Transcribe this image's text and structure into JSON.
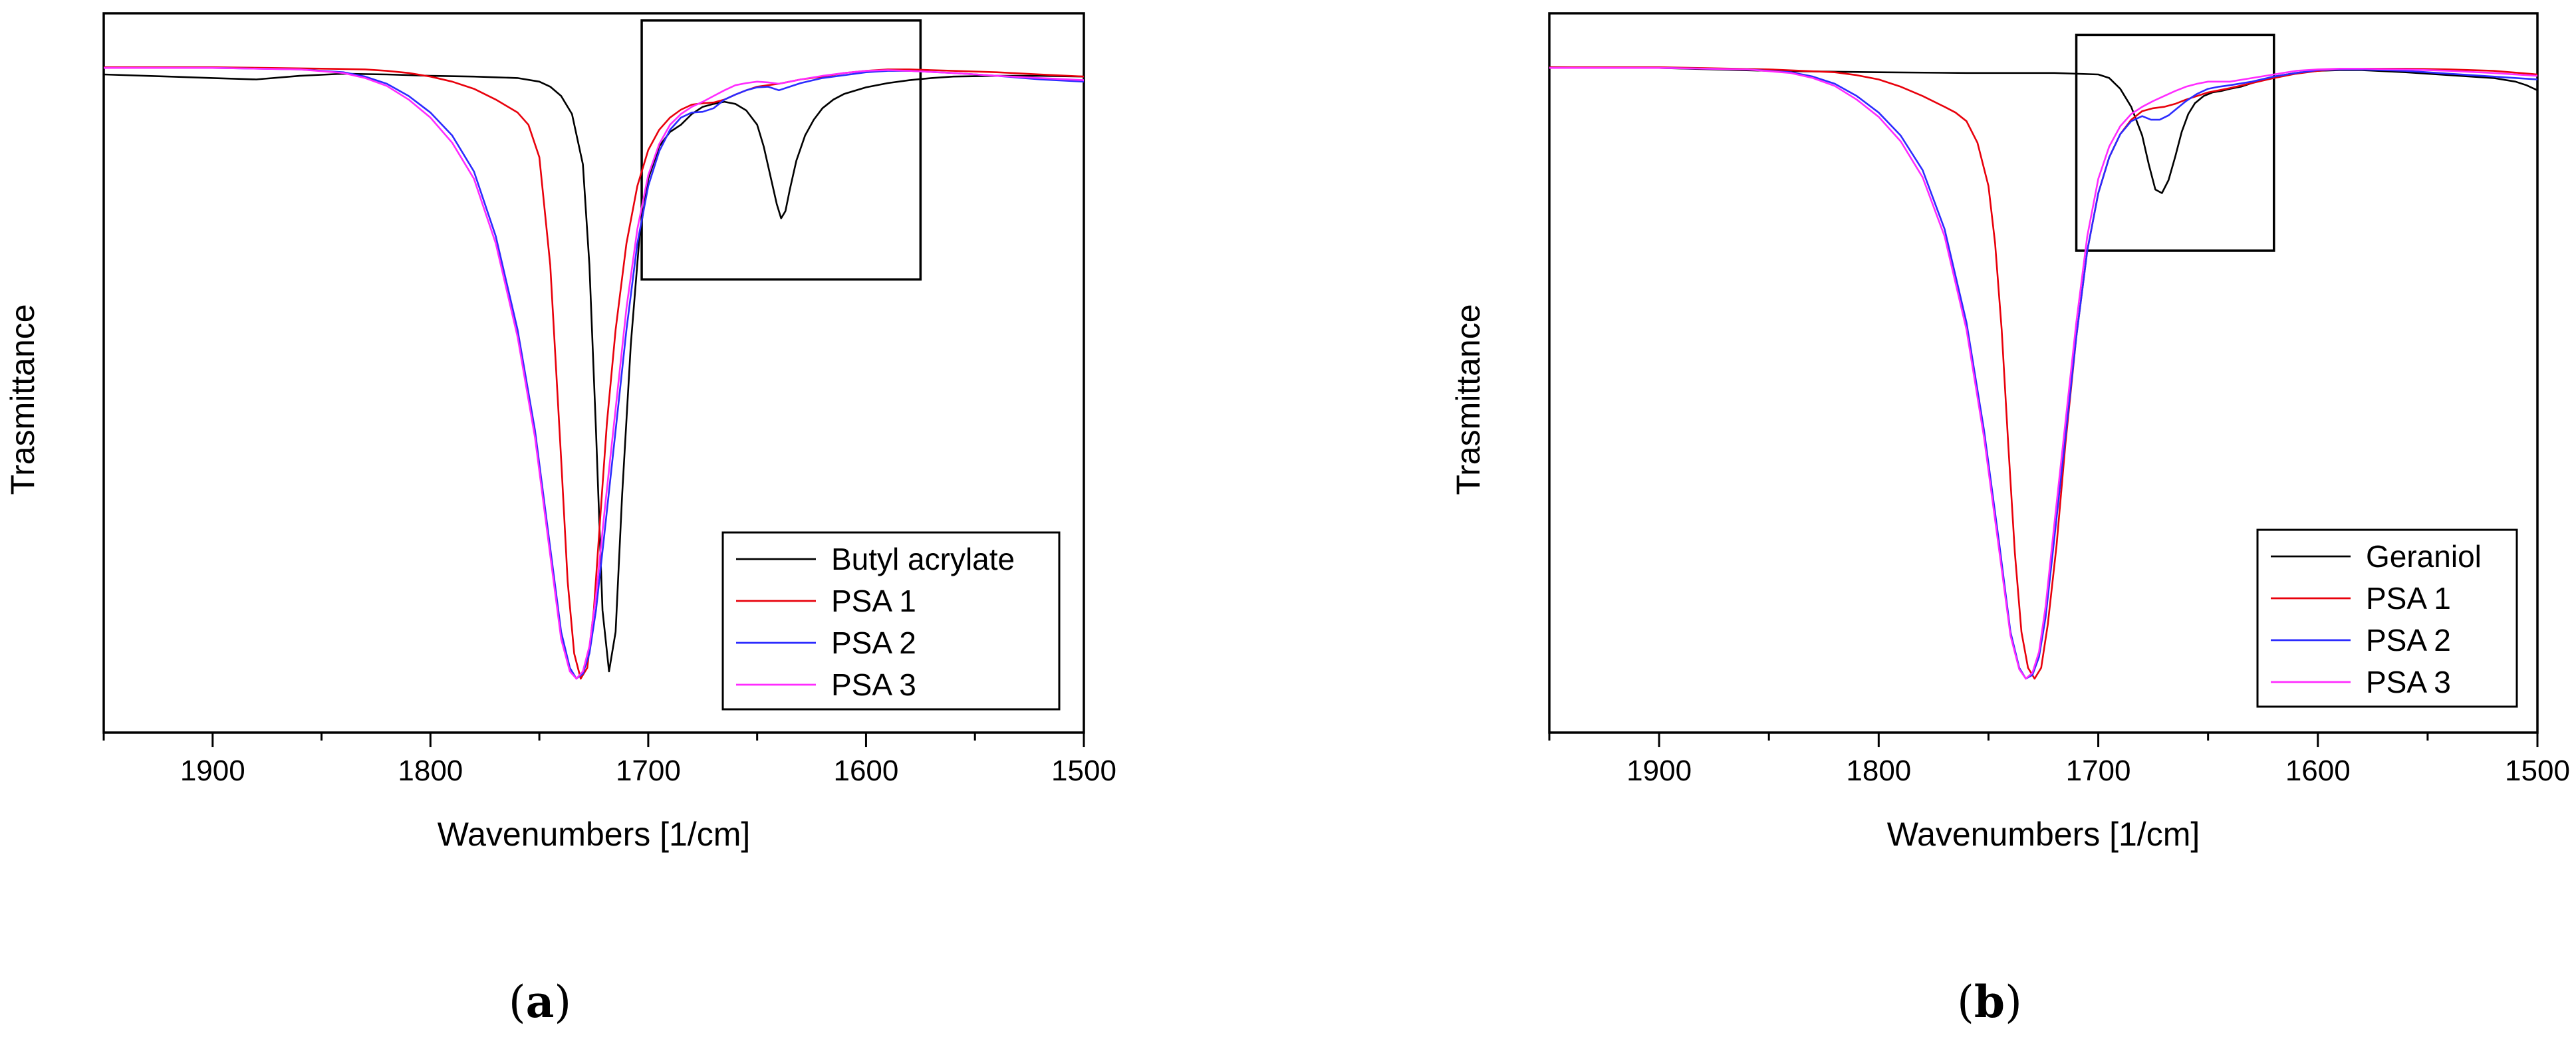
{
  "chart_data": [
    {
      "type": "line",
      "panel_label": "a",
      "xlabel": "Wavenumbers [1/cm]",
      "ylabel": "Trasmittance",
      "xlim": [
        1950,
        1500
      ],
      "x_reversed": true,
      "ylim": [
        0.0,
        1.0
      ],
      "y_ticks_shown": false,
      "x_ticks": [
        1900,
        1800,
        1700,
        1600,
        1500
      ],
      "x_tick_labels": [
        "1900",
        "1800",
        "1700",
        "1600",
        "1500"
      ],
      "grid": false,
      "legend": {
        "position": "bottom-right",
        "entries": [
          "Butyl acrylate",
          "PSA 1",
          "PSA 2",
          "PSA 3"
        ]
      },
      "inset_box_x": [
        1703,
        1575
      ],
      "inset_box_y": [
        0.63,
        0.99
      ],
      "series": [
        {
          "name": "Butyl acrylate",
          "color": "#000000",
          "x": [
            1950,
            1920,
            1900,
            1880,
            1860,
            1840,
            1820,
            1800,
            1780,
            1770,
            1760,
            1750,
            1745,
            1740,
            1735,
            1730,
            1727,
            1724,
            1721,
            1718,
            1715,
            1712,
            1708,
            1704,
            1700,
            1695,
            1690,
            1685,
            1680,
            1675,
            1670,
            1665,
            1660,
            1655,
            1650,
            1647,
            1644,
            1641,
            1639,
            1637,
            1635,
            1632,
            1628,
            1624,
            1620,
            1615,
            1610,
            1600,
            1590,
            1580,
            1570,
            1560,
            1540,
            1520,
            1500
          ],
          "y": [
            0.915,
            0.912,
            0.91,
            0.908,
            0.913,
            0.916,
            0.915,
            0.913,
            0.912,
            0.911,
            0.91,
            0.905,
            0.898,
            0.885,
            0.86,
            0.79,
            0.65,
            0.42,
            0.17,
            0.085,
            0.14,
            0.33,
            0.54,
            0.69,
            0.77,
            0.815,
            0.835,
            0.845,
            0.86,
            0.87,
            0.874,
            0.877,
            0.874,
            0.865,
            0.845,
            0.815,
            0.775,
            0.735,
            0.715,
            0.725,
            0.755,
            0.795,
            0.83,
            0.852,
            0.868,
            0.88,
            0.888,
            0.897,
            0.903,
            0.907,
            0.91,
            0.912,
            0.913,
            0.913,
            0.912
          ]
        },
        {
          "name": "PSA 1",
          "color": "#e8000b",
          "x": [
            1950,
            1900,
            1850,
            1830,
            1820,
            1810,
            1800,
            1790,
            1780,
            1770,
            1760,
            1755,
            1750,
            1745,
            1740,
            1737,
            1734,
            1731,
            1728,
            1725,
            1722,
            1719,
            1715,
            1710,
            1705,
            1700,
            1695,
            1690,
            1685,
            1680,
            1675,
            1670,
            1665,
            1660,
            1655,
            1650,
            1645,
            1640,
            1635,
            1630,
            1620,
            1610,
            1600,
            1590,
            1580,
            1560,
            1540,
            1520,
            1500
          ],
          "y": [
            0.925,
            0.925,
            0.923,
            0.922,
            0.92,
            0.917,
            0.912,
            0.905,
            0.895,
            0.88,
            0.862,
            0.845,
            0.8,
            0.65,
            0.38,
            0.21,
            0.11,
            0.075,
            0.09,
            0.17,
            0.3,
            0.43,
            0.56,
            0.68,
            0.76,
            0.81,
            0.838,
            0.855,
            0.866,
            0.873,
            0.875,
            0.876,
            0.88,
            0.887,
            0.893,
            0.898,
            0.9,
            0.902,
            0.905,
            0.908,
            0.912,
            0.917,
            0.92,
            0.922,
            0.922,
            0.92,
            0.918,
            0.915,
            0.912
          ]
        },
        {
          "name": "PSA 2",
          "color": "#2b2bff",
          "x": [
            1950,
            1900,
            1860,
            1840,
            1830,
            1820,
            1810,
            1800,
            1790,
            1780,
            1770,
            1760,
            1752,
            1746,
            1740,
            1736,
            1733,
            1730,
            1727,
            1724,
            1720,
            1715,
            1710,
            1705,
            1700,
            1695,
            1690,
            1685,
            1680,
            1675,
            1670,
            1665,
            1660,
            1655,
            1650,
            1645,
            1640,
            1635,
            1630,
            1620,
            1610,
            1600,
            1590,
            1580,
            1560,
            1540,
            1520,
            1500
          ],
          "y": [
            0.924,
            0.924,
            0.922,
            0.918,
            0.912,
            0.902,
            0.885,
            0.862,
            0.83,
            0.78,
            0.69,
            0.56,
            0.42,
            0.28,
            0.14,
            0.09,
            0.075,
            0.082,
            0.11,
            0.17,
            0.28,
            0.42,
            0.56,
            0.68,
            0.76,
            0.808,
            0.838,
            0.855,
            0.862,
            0.863,
            0.868,
            0.88,
            0.887,
            0.893,
            0.897,
            0.898,
            0.893,
            0.898,
            0.903,
            0.91,
            0.914,
            0.918,
            0.92,
            0.92,
            0.917,
            0.913,
            0.908,
            0.905
          ]
        },
        {
          "name": "PSA 3",
          "color": "#ff2bff",
          "x": [
            1950,
            1900,
            1860,
            1840,
            1830,
            1820,
            1810,
            1800,
            1790,
            1780,
            1770,
            1760,
            1752,
            1746,
            1740,
            1736,
            1733,
            1730,
            1727,
            1724,
            1720,
            1715,
            1710,
            1705,
            1700,
            1695,
            1690,
            1685,
            1680,
            1675,
            1670,
            1665,
            1660,
            1655,
            1650,
            1645,
            1640,
            1635,
            1630,
            1620,
            1610,
            1600,
            1590,
            1580,
            1560,
            1540,
            1520,
            1500
          ],
          "y": [
            0.924,
            0.924,
            0.922,
            0.917,
            0.91,
            0.899,
            0.88,
            0.855,
            0.82,
            0.77,
            0.68,
            0.55,
            0.41,
            0.27,
            0.13,
            0.085,
            0.075,
            0.085,
            0.12,
            0.19,
            0.31,
            0.45,
            0.59,
            0.7,
            0.775,
            0.818,
            0.845,
            0.86,
            0.87,
            0.877,
            0.885,
            0.893,
            0.9,
            0.903,
            0.905,
            0.904,
            0.902,
            0.905,
            0.908,
            0.913,
            0.917,
            0.92,
            0.921,
            0.92,
            0.917,
            0.913,
            0.91,
            0.907
          ]
        }
      ]
    },
    {
      "type": "line",
      "panel_label": "b",
      "xlabel": "Wavenumbers [1/cm]",
      "ylabel": "Trasmittance",
      "xlim": [
        1950,
        1500
      ],
      "x_reversed": true,
      "ylim": [
        0.0,
        1.0
      ],
      "y_ticks_shown": false,
      "x_ticks": [
        1900,
        1800,
        1700,
        1600,
        1500
      ],
      "x_tick_labels": [
        "1900",
        "1800",
        "1700",
        "1600",
        "1500"
      ],
      "grid": false,
      "legend": {
        "position": "bottom-right",
        "entries": [
          "Geraniol",
          "PSA 1",
          "PSA 2",
          "PSA 3"
        ]
      },
      "inset_box_x": [
        1710,
        1620
      ],
      "inset_box_y": [
        0.67,
        0.97
      ],
      "series": [
        {
          "name": "Geraniol",
          "color": "#000000",
          "x": [
            1950,
            1900,
            1850,
            1800,
            1760,
            1720,
            1700,
            1695,
            1690,
            1685,
            1680,
            1677,
            1674,
            1671,
            1668,
            1665,
            1662,
            1659,
            1656,
            1652,
            1648,
            1644,
            1640,
            1635,
            1630,
            1620,
            1610,
            1600,
            1590,
            1580,
            1560,
            1540,
            1520,
            1510,
            1505,
            1500
          ],
          "y": [
            0.925,
            0.924,
            0.92,
            0.918,
            0.917,
            0.917,
            0.915,
            0.91,
            0.895,
            0.87,
            0.83,
            0.79,
            0.755,
            0.75,
            0.768,
            0.8,
            0.835,
            0.86,
            0.875,
            0.885,
            0.89,
            0.892,
            0.895,
            0.898,
            0.903,
            0.912,
            0.917,
            0.92,
            0.921,
            0.921,
            0.918,
            0.914,
            0.91,
            0.905,
            0.9,
            0.893
          ]
        },
        {
          "name": "PSA 1",
          "color": "#e8000b",
          "x": [
            1950,
            1900,
            1850,
            1820,
            1810,
            1800,
            1790,
            1780,
            1770,
            1765,
            1760,
            1755,
            1750,
            1747,
            1744,
            1741,
            1738,
            1735,
            1732,
            1729,
            1726,
            1723,
            1719,
            1715,
            1710,
            1705,
            1700,
            1695,
            1690,
            1685,
            1680,
            1675,
            1670,
            1665,
            1660,
            1655,
            1650,
            1645,
            1640,
            1630,
            1620,
            1610,
            1600,
            1590,
            1580,
            1560,
            1540,
            1520,
            1500
          ],
          "y": [
            0.925,
            0.925,
            0.922,
            0.918,
            0.914,
            0.908,
            0.898,
            0.885,
            0.87,
            0.862,
            0.85,
            0.82,
            0.76,
            0.68,
            0.56,
            0.4,
            0.25,
            0.14,
            0.09,
            0.075,
            0.09,
            0.15,
            0.26,
            0.4,
            0.55,
            0.67,
            0.75,
            0.8,
            0.832,
            0.852,
            0.864,
            0.868,
            0.87,
            0.874,
            0.88,
            0.885,
            0.89,
            0.893,
            0.896,
            0.903,
            0.91,
            0.916,
            0.92,
            0.922,
            0.923,
            0.923,
            0.922,
            0.92,
            0.915
          ]
        },
        {
          "name": "PSA 2",
          "color": "#2b2bff",
          "x": [
            1950,
            1900,
            1860,
            1840,
            1830,
            1820,
            1810,
            1800,
            1790,
            1780,
            1770,
            1760,
            1752,
            1745,
            1740,
            1736,
            1733,
            1730,
            1727,
            1724,
            1720,
            1715,
            1710,
            1705,
            1700,
            1695,
            1690,
            1685,
            1680,
            1676,
            1672,
            1668,
            1664,
            1660,
            1655,
            1650,
            1645,
            1640,
            1630,
            1620,
            1610,
            1600,
            1590,
            1580,
            1560,
            1540,
            1520,
            1500
          ],
          "y": [
            0.924,
            0.924,
            0.922,
            0.918,
            0.912,
            0.902,
            0.885,
            0.862,
            0.83,
            0.782,
            0.7,
            0.57,
            0.42,
            0.26,
            0.14,
            0.09,
            0.075,
            0.08,
            0.105,
            0.16,
            0.27,
            0.41,
            0.55,
            0.67,
            0.75,
            0.8,
            0.832,
            0.85,
            0.857,
            0.852,
            0.852,
            0.858,
            0.868,
            0.878,
            0.888,
            0.895,
            0.898,
            0.9,
            0.905,
            0.912,
            0.917,
            0.921,
            0.922,
            0.922,
            0.92,
            0.916,
            0.912,
            0.908
          ]
        },
        {
          "name": "PSA 3",
          "color": "#ff2bff",
          "x": [
            1950,
            1900,
            1860,
            1840,
            1830,
            1820,
            1810,
            1800,
            1790,
            1780,
            1770,
            1760,
            1752,
            1745,
            1740,
            1736,
            1733,
            1730,
            1727,
            1724,
            1720,
            1715,
            1710,
            1705,
            1700,
            1695,
            1690,
            1685,
            1680,
            1675,
            1670,
            1665,
            1660,
            1655,
            1650,
            1645,
            1640,
            1630,
            1620,
            1610,
            1600,
            1590,
            1580,
            1560,
            1540,
            1520,
            1500
          ],
          "y": [
            0.924,
            0.924,
            0.922,
            0.917,
            0.91,
            0.899,
            0.88,
            0.856,
            0.822,
            0.772,
            0.69,
            0.56,
            0.41,
            0.25,
            0.135,
            0.088,
            0.075,
            0.083,
            0.112,
            0.175,
            0.29,
            0.43,
            0.57,
            0.69,
            0.77,
            0.815,
            0.843,
            0.86,
            0.87,
            0.878,
            0.885,
            0.892,
            0.898,
            0.902,
            0.905,
            0.905,
            0.905,
            0.91,
            0.915,
            0.92,
            0.922,
            0.923,
            0.923,
            0.922,
            0.92,
            0.917,
            0.913
          ]
        }
      ]
    }
  ]
}
